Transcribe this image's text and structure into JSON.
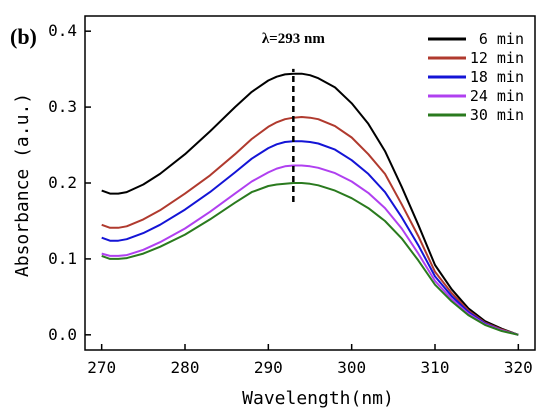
{
  "chart_data": {
    "type": "line",
    "panel_label": "(b)",
    "xlabel": "Wavelength(nm)",
    "ylabel": "Absorbance (a.u.)",
    "xlim": [
      268,
      322
    ],
    "ylim": [
      -0.02,
      0.42
    ],
    "xticks": [
      270,
      280,
      290,
      300,
      310,
      320
    ],
    "yticks": [
      0.0,
      0.1,
      0.2,
      0.3,
      0.4
    ],
    "ytick_labels": [
      "0.0",
      "0.1",
      "0.2",
      "0.3",
      "0.4"
    ],
    "legend_position": "top-right",
    "annotation": {
      "text": "λ=293 nm",
      "x": 293,
      "y_from": 0.175,
      "y_to": 0.345
    },
    "x": [
      270,
      271,
      272,
      273,
      275,
      277,
      280,
      283,
      286,
      288,
      290,
      291,
      292,
      293,
      294,
      295,
      296,
      298,
      300,
      302,
      304,
      306,
      308,
      310,
      312,
      314,
      316,
      318,
      320
    ],
    "series": [
      {
        "name": "6 min",
        "color": "#000000",
        "values": [
          0.19,
          0.186,
          0.186,
          0.188,
          0.198,
          0.212,
          0.238,
          0.268,
          0.3,
          0.32,
          0.335,
          0.34,
          0.343,
          0.344,
          0.344,
          0.342,
          0.338,
          0.326,
          0.305,
          0.278,
          0.242,
          0.195,
          0.145,
          0.092,
          0.06,
          0.035,
          0.018,
          0.008,
          0.0
        ]
      },
      {
        "name": "12 min",
        "color": "#b03a2e",
        "values": [
          0.145,
          0.141,
          0.141,
          0.143,
          0.152,
          0.164,
          0.186,
          0.21,
          0.238,
          0.258,
          0.274,
          0.28,
          0.284,
          0.286,
          0.287,
          0.286,
          0.284,
          0.275,
          0.26,
          0.238,
          0.212,
          0.172,
          0.13,
          0.083,
          0.055,
          0.032,
          0.016,
          0.007,
          0.0
        ]
      },
      {
        "name": "18 min",
        "color": "#1414d6",
        "values": [
          0.128,
          0.124,
          0.124,
          0.126,
          0.134,
          0.145,
          0.165,
          0.188,
          0.214,
          0.232,
          0.246,
          0.251,
          0.254,
          0.255,
          0.255,
          0.254,
          0.252,
          0.244,
          0.23,
          0.212,
          0.188,
          0.155,
          0.118,
          0.077,
          0.051,
          0.03,
          0.015,
          0.006,
          0.0
        ]
      },
      {
        "name": "24 min",
        "color": "#b040f0",
        "values": [
          0.107,
          0.104,
          0.104,
          0.105,
          0.112,
          0.122,
          0.14,
          0.162,
          0.186,
          0.202,
          0.214,
          0.219,
          0.222,
          0.223,
          0.223,
          0.222,
          0.22,
          0.213,
          0.202,
          0.187,
          0.167,
          0.14,
          0.107,
          0.071,
          0.047,
          0.028,
          0.014,
          0.006,
          0.0
        ]
      },
      {
        "name": "30 min",
        "color": "#2a7a1e",
        "values": [
          0.104,
          0.1,
          0.1,
          0.101,
          0.107,
          0.116,
          0.132,
          0.152,
          0.174,
          0.188,
          0.196,
          0.198,
          0.199,
          0.2,
          0.2,
          0.199,
          0.197,
          0.19,
          0.18,
          0.167,
          0.15,
          0.127,
          0.098,
          0.066,
          0.044,
          0.026,
          0.013,
          0.005,
          0.0
        ]
      }
    ]
  }
}
